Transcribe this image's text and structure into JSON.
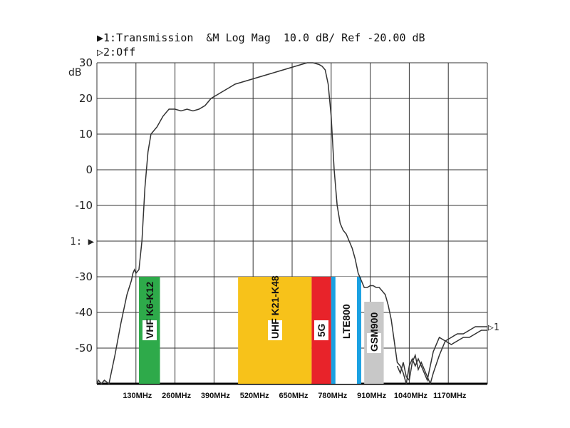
{
  "header": {
    "line1": "▶1:Transmission  &M Log Mag  10.0 dB/ Ref -20.00 dB",
    "line2": "▷2:Off"
  },
  "axes": {
    "ylabel": "dB",
    "ref_marker": "1: ▶",
    "trace_marker": "▷1"
  },
  "chart_data": {
    "type": "line",
    "title": "Transmission",
    "xlabel": "",
    "ylabel": "dB",
    "xlim": [
      0,
      1300
    ],
    "ylim": [
      -60,
      30
    ],
    "yticks": [
      30,
      20,
      10,
      0,
      -10,
      -20,
      -30,
      -40,
      -50
    ],
    "ytick_labels": [
      "30",
      "20",
      "10",
      "0",
      "-10",
      "",
      "-30",
      "-40",
      "-50"
    ],
    "xticks": [
      130,
      260,
      390,
      520,
      650,
      780,
      910,
      1040,
      1170
    ],
    "xtick_labels": [
      "130MHz",
      "260MHz",
      "390MHz",
      "520MHz",
      "650MHz",
      "780MHz",
      "910MHz",
      "1040MHz",
      "1170MHz"
    ],
    "grid": true,
    "series": [
      {
        "x": [
          0,
          5,
          15,
          25,
          40,
          60,
          80,
          100,
          115,
          120,
          125,
          130,
          140,
          150,
          160,
          170,
          180,
          200,
          220,
          240,
          260,
          280,
          300,
          320,
          340,
          360,
          380,
          400,
          420,
          440,
          460,
          480,
          500,
          520,
          540,
          560,
          580,
          600,
          620,
          640,
          660,
          680,
          700,
          720,
          740,
          750,
          760,
          770,
          780,
          790,
          800,
          810,
          820,
          830,
          840,
          850,
          860,
          870,
          880,
          890,
          900,
          910,
          920,
          930,
          940,
          950,
          960,
          970,
          980,
          990,
          1000,
          1010,
          1020,
          1030,
          1040,
          1050,
          1060,
          1070,
          1080,
          1090,
          1100,
          1110,
          1120,
          1140,
          1160,
          1180,
          1200,
          1220,
          1240,
          1260,
          1280,
          1300
        ],
        "y": [
          -60,
          -59,
          -60,
          -59,
          -60,
          -52,
          -43,
          -35,
          -31,
          -29,
          -28,
          -29,
          -28,
          -20,
          -5,
          5,
          10,
          12,
          15,
          17,
          17,
          16.5,
          17,
          16.5,
          17,
          18,
          20,
          21,
          22,
          23,
          24,
          24.5,
          25,
          25.5,
          26,
          26.5,
          27,
          27.5,
          28,
          28.5,
          29,
          29.5,
          30,
          30,
          29.5,
          29,
          28,
          24,
          15,
          0,
          -10,
          -15,
          -17,
          -18,
          -20,
          -22,
          -25,
          -29,
          -31,
          -33,
          -33,
          -32.5,
          -32.5,
          -33,
          -33,
          -34,
          -35,
          -38,
          -42,
          -48,
          -54,
          -55,
          -57,
          -60,
          -55,
          -53,
          -55,
          -53,
          -55,
          -57,
          -59,
          -55,
          -51,
          -47,
          -48,
          -47,
          -46,
          -46,
          -45,
          -44,
          -44,
          -44
        ]
      },
      {
        "x": [
          1000,
          1010,
          1020,
          1030,
          1040,
          1050,
          1060,
          1070,
          1080,
          1090,
          1100,
          1110,
          1120,
          1140,
          1160,
          1180,
          1200,
          1220,
          1240,
          1260,
          1280,
          1300
        ],
        "y": [
          -55,
          -57,
          -54,
          -58,
          -59,
          -54,
          -52,
          -56,
          -54,
          -56,
          -58,
          -60,
          -57,
          -52,
          -48,
          -49,
          -48,
          -47,
          -47,
          -46,
          -45,
          -45
        ]
      }
    ],
    "bands": [
      {
        "label": "VHF K6-K12",
        "x0": 140,
        "x1": 210,
        "top": -30,
        "color": "#2eaa4a"
      },
      {
        "label": "UHF K21-K48",
        "x0": 470,
        "x1": 715,
        "top": -30,
        "color": "#f7c21a"
      },
      {
        "label": "5G",
        "x0": 715,
        "x1": 780,
        "top": -30,
        "color": "#e8232a"
      },
      {
        "label": "LTE800",
        "x0": 780,
        "x1": 880,
        "top": -30,
        "color": "#ffffff",
        "edge_color": "#1ba1e2"
      },
      {
        "label": "GSM900",
        "x0": 890,
        "x1": 955,
        "top": -37,
        "color": "#c8c8c8"
      }
    ]
  }
}
